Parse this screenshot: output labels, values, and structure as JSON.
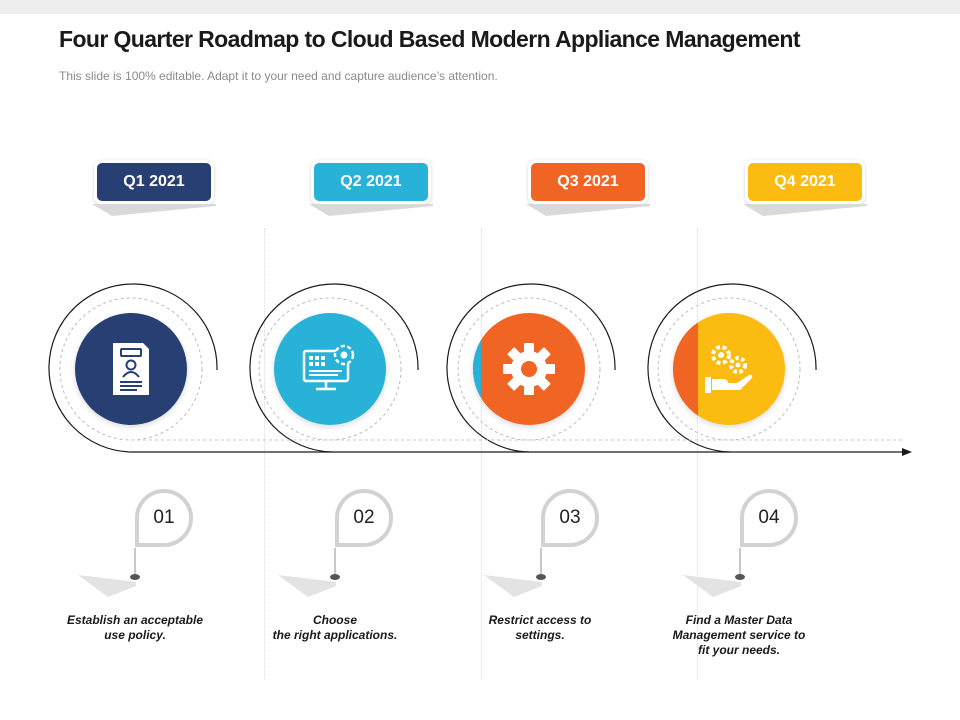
{
  "header": {
    "title": "Four Quarter Roadmap to Cloud Based Modern Appliance Management",
    "subtitle": "This slide is 100% editable. Adapt it to your need and capture audience’s attention."
  },
  "quarters": [
    {
      "label": "Q1 2021",
      "color": "#283f74",
      "icon": "document-user-icon",
      "number": "01",
      "description": "Establish  an acceptable\nuse policy."
    },
    {
      "label": "Q2 2021",
      "color": "#28b2d8",
      "icon": "monitor-gear-icon",
      "number": "02",
      "description": "Choose\nthe right applications."
    },
    {
      "label": "Q3 2021",
      "color": "#f06523",
      "icon": "gear-icon",
      "number": "03",
      "description": "Restrict  access  to\nsettings."
    },
    {
      "label": "Q4 2021",
      "color": "#fbbb11",
      "icon": "hand-gears-icon",
      "number": "04",
      "description": "Find a Master Data\nManagement service to\nfit your needs."
    }
  ]
}
